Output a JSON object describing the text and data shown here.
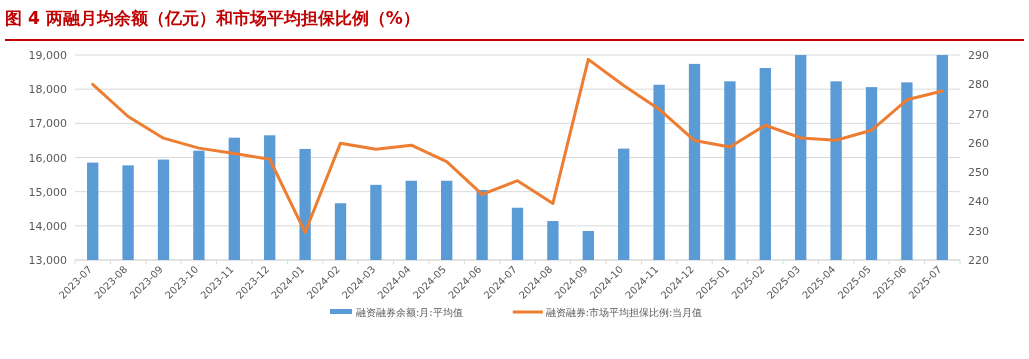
{
  "chart_data": {
    "type": "bar",
    "title": "图 4  两融月均余额（亿元）和市场平均担保比例（%）",
    "categories": [
      "2023-07",
      "2023-08",
      "2023-09",
      "2023-10",
      "2023-11",
      "2023-12",
      "2024-01",
      "2024-02",
      "2024-03",
      "2024-04",
      "2024-05",
      "2024-06",
      "2024-07",
      "2024-08",
      "2024-09",
      "2024-10",
      "2024-11",
      "2024-12",
      "2025-01",
      "2025-02",
      "2025-03",
      "2025-04",
      "2025-05",
      "2025-06",
      "2025-07"
    ],
    "series": [
      {
        "name": "融资融券余额:月:平均值",
        "color": "#5b9bd5",
        "values": [
          15850,
          15770,
          15940,
          16200,
          16580,
          16650,
          16250,
          14660,
          15200,
          15320,
          15320,
          15050,
          14530,
          14140,
          13850,
          16260,
          18130,
          18740,
          18230,
          18620,
          19000,
          18230,
          18060,
          18200,
          19000
        ]
      },
      {
        "name": "融资融券:市场平均担保比例:当月值",
        "type": "line",
        "axis": "y2",
        "color": "#ed7d31",
        "values": [
          280,
          269,
          261.6,
          258.2,
          256.4,
          254.4,
          229.4,
          259.9,
          257.8,
          259.2,
          253.6,
          242.4,
          247.1,
          239.3,
          288.5,
          279.6,
          271.5,
          260.8,
          258.6,
          266,
          261.7,
          260.9,
          264.3,
          274.7,
          277.7
        ]
      }
    ],
    "ylim": [
      13000,
      19000
    ],
    "yticks": [
      {
        "value": 13000,
        "label": "13,000"
      },
      {
        "value": 14000,
        "label": "14,000"
      },
      {
        "value": 15000,
        "label": "15,000"
      },
      {
        "value": 16000,
        "label": "16,000"
      },
      {
        "value": 17000,
        "label": "17,000"
      },
      {
        "value": 18000,
        "label": "18,000"
      },
      {
        "value": 19000,
        "label": "19,000"
      }
    ],
    "y2lim": [
      220,
      290
    ],
    "y2ticks": [
      220,
      230,
      240,
      250,
      260,
      270,
      280,
      290
    ],
    "grid": "y",
    "legend": "bottom",
    "marker": "none",
    "line_style": "solid"
  }
}
